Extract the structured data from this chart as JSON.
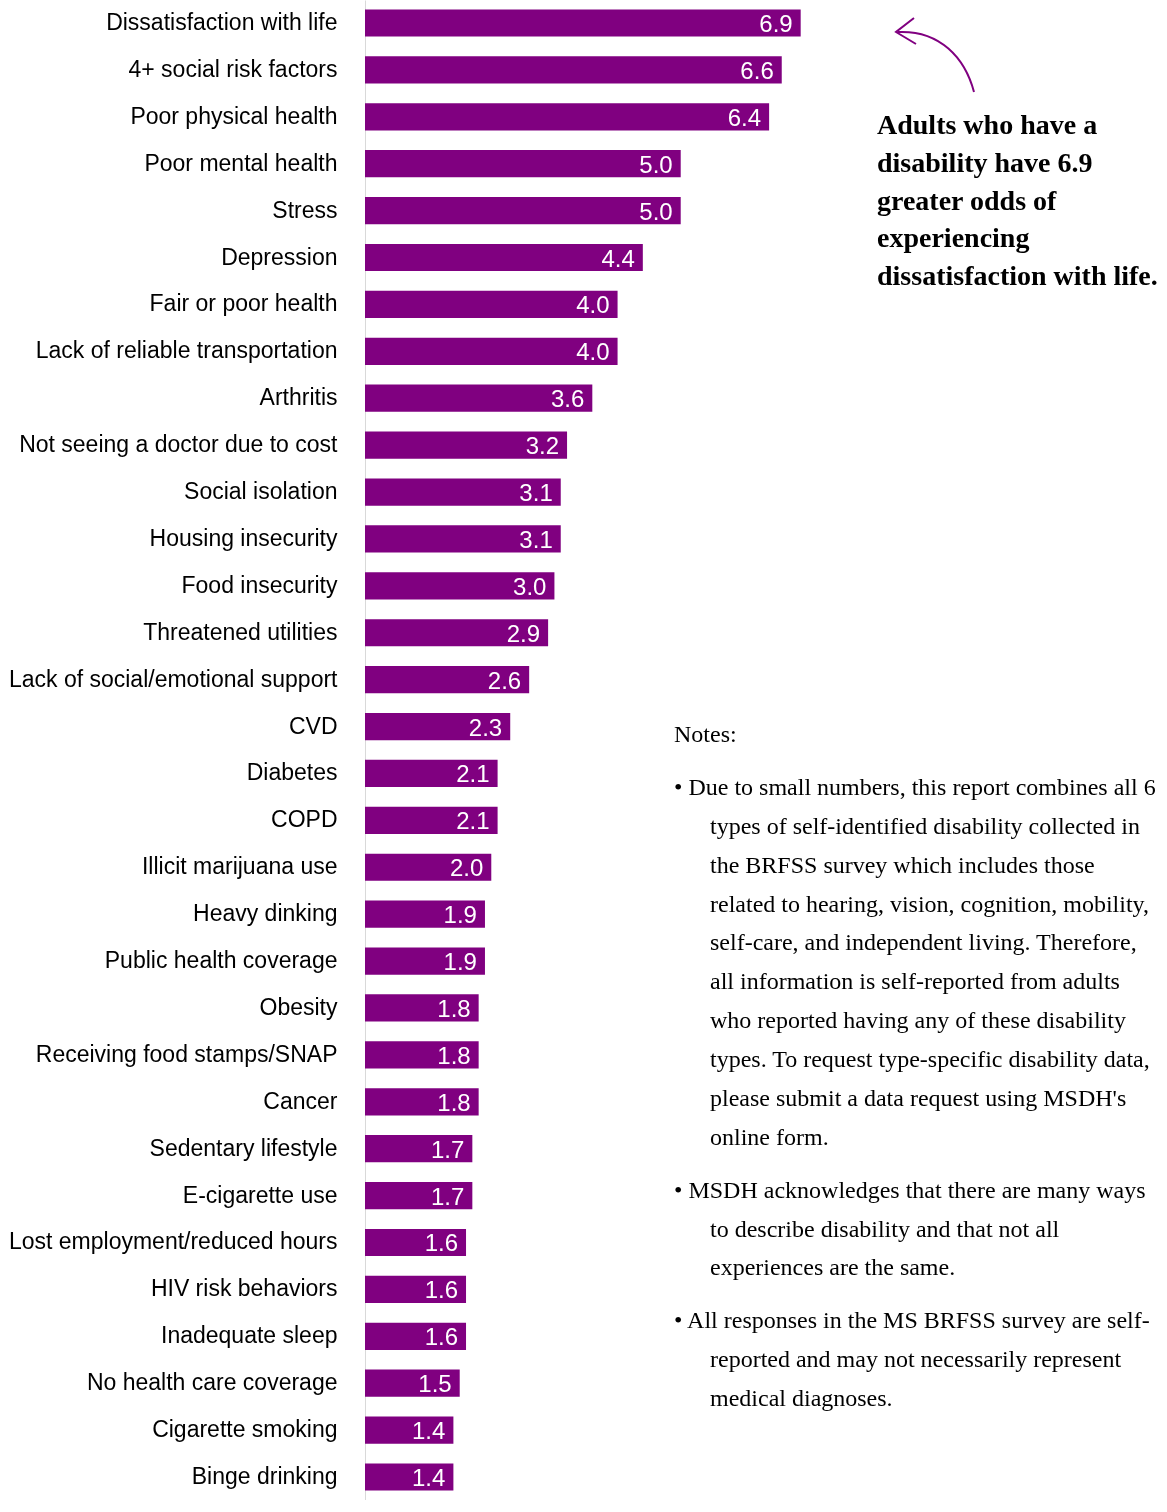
{
  "chart_data": {
    "type": "bar",
    "orientation": "horizontal",
    "color": "#800080",
    "value_labels": [
      "6.9",
      "6.6",
      "6.4",
      "5.0",
      "5.0",
      "4.4",
      "4.0",
      "4.0",
      "3.6",
      "3.2",
      "3.1",
      "3.1",
      "3.0",
      "2.9",
      "2.6",
      "2.3",
      "2.1",
      "2.1",
      "2.0",
      "1.9",
      "1.9",
      "1.8",
      "1.8",
      "1.8",
      "1.7",
      "1.7",
      "1.6",
      "1.6",
      "1.6",
      "1.5",
      "1.4",
      "1.4"
    ],
    "categories": [
      "Dissatisfaction with life",
      "4+ social risk factors",
      "Poor physical health",
      "Poor mental health",
      "Stress",
      "Depression",
      "Fair or poor health",
      "Lack of reliable transportation",
      "Arthritis",
      "Not seeing a doctor due to cost",
      "Social isolation",
      "Housing insecurity",
      "Food insecurity",
      "Threatened utilities",
      "Lack of social/emotional support",
      "CVD",
      "Diabetes",
      "COPD",
      "Illicit marijuana use",
      "Heavy dinking",
      "Public health coverage",
      "Obesity",
      "Receiving food stamps/SNAP",
      "Cancer",
      "Sedentary lifestyle",
      "E-cigarette use",
      "Lost employment/reduced hours",
      "HIV risk behaviors",
      "Inadequate sleep",
      "No health care coverage",
      "Cigarette smoking",
      "Binge drinking"
    ],
    "values": [
      6.9,
      6.6,
      6.4,
      5.0,
      5.0,
      4.4,
      4.0,
      4.0,
      3.6,
      3.2,
      3.1,
      3.1,
      3.0,
      2.9,
      2.6,
      2.3,
      2.1,
      2.1,
      2.0,
      1.9,
      1.9,
      1.8,
      1.8,
      1.8,
      1.7,
      1.7,
      1.6,
      1.6,
      1.6,
      1.5,
      1.4,
      1.4
    ],
    "annotations": [
      "Adults who have a disability have 6.9 greater odds of experiencing dissatisfaction with life.",
      "Notes:",
      "• Due to small numbers, this report combines all 6 types of self-identified disability collected in the BRFSS survey which includes those related to hearing, vision, cognition, mobility, self-care, and independent living. Therefore, all information is self-reported from adults who reported having any of these disability types. To request type-specific disability data, please submit a data request using MSDH's online form.",
      "• MSDH acknowledges that there are many ways to describe disability and that not all experiences are the same.",
      "• All responses in the MS BRFSS survey are self-reported and may not necessarily represent medical diagnoses."
    ]
  }
}
